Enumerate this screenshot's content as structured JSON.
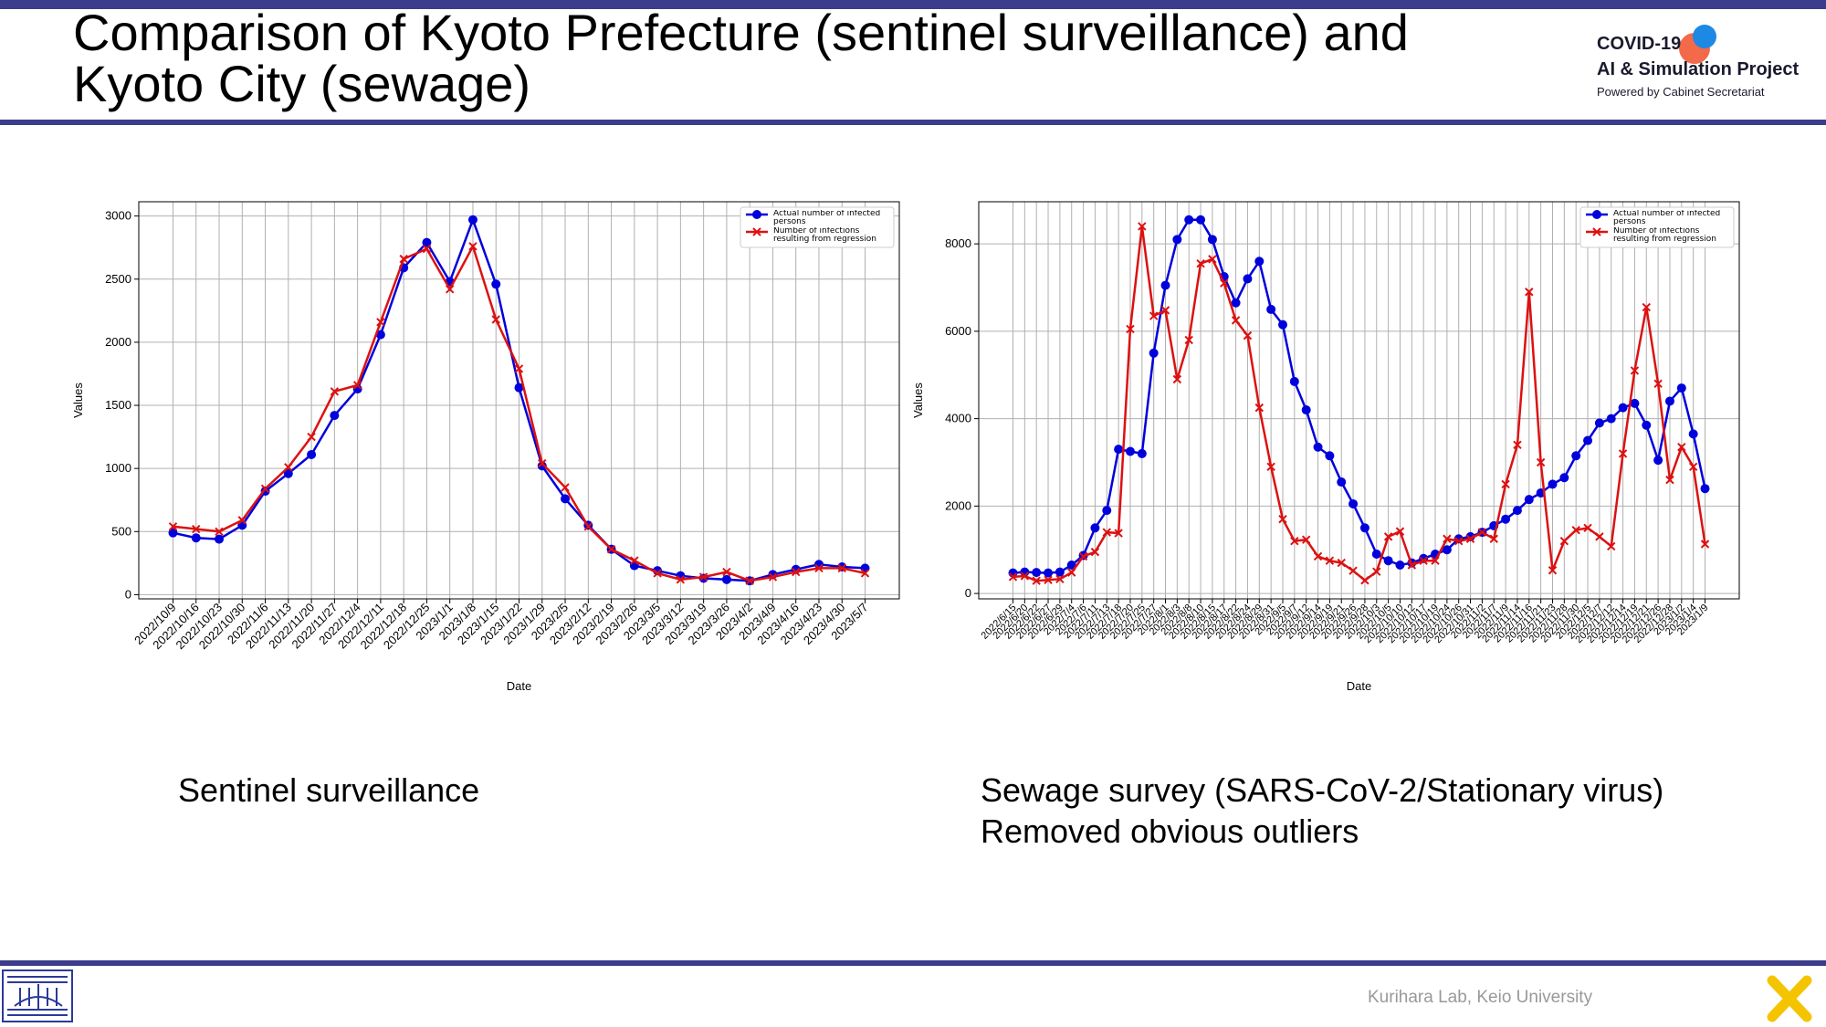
{
  "header": {
    "title": "Comparison of Kyoto Prefecture (sentinel surveillance) and Kyoto City (sewage)",
    "logo": {
      "line1": "COVID-19",
      "line2": "AI & Simulation Project",
      "line3": "Powered by Cabinet Secretariat"
    }
  },
  "chart_data": [
    {
      "type": "line",
      "xlabel": "Date",
      "ylabel": "Values",
      "categories": [
        "2022/10/9",
        "2022/10/16",
        "2022/10/23",
        "2022/10/30",
        "2022/11/6",
        "2022/11/13",
        "2022/11/20",
        "2022/11/27",
        "2022/12/4",
        "2022/12/11",
        "2022/12/18",
        "2022/12/25",
        "2023/1/1",
        "2023/1/8",
        "2023/1/15",
        "2023/1/22",
        "2023/1/29",
        "2023/2/5",
        "2023/2/12",
        "2023/2/19",
        "2023/2/26",
        "2023/3/5",
        "2023/3/12",
        "2023/3/19",
        "2023/3/26",
        "2023/4/2",
        "2023/4/9",
        "2023/4/16",
        "2023/4/23",
        "2023/4/30",
        "2023/5/7"
      ],
      "series": [
        {
          "name": "Actual number of infected persons",
          "color": "#0000dd",
          "marker": "circle",
          "values": [
            490,
            450,
            440,
            550,
            820,
            960,
            1110,
            1420,
            1630,
            2060,
            2590,
            2790,
            2480,
            2970,
            2460,
            1640,
            1020,
            760,
            550,
            360,
            230,
            190,
            150,
            130,
            120,
            110,
            160,
            200,
            240,
            220,
            210
          ]
        },
        {
          "name": "Number of infections resulting from regression",
          "color": "#dd1111",
          "marker": "x",
          "values": [
            540,
            520,
            500,
            590,
            840,
            1010,
            1250,
            1610,
            1660,
            2160,
            2660,
            2740,
            2420,
            2760,
            2180,
            1790,
            1040,
            850,
            540,
            360,
            270,
            170,
            120,
            140,
            180,
            110,
            140,
            180,
            210,
            210,
            170
          ]
        }
      ],
      "ylim": [
        -33,
        3113
      ],
      "yticks": [
        0,
        500,
        1000,
        1500,
        2000,
        2500,
        3000
      ],
      "grid": true,
      "legend": "upper right"
    },
    {
      "type": "line",
      "xlabel": "Date",
      "ylabel": "Values",
      "categories": [
        "2022/6/15",
        "2022/6/20",
        "2022/6/22",
        "2022/6/27",
        "2022/6/29",
        "2022/7/4",
        "2022/7/6",
        "2022/7/11",
        "2022/7/13",
        "2022/7/18",
        "2022/7/20",
        "2022/7/25",
        "2022/7/27",
        "2022/8/1",
        "2022/8/3",
        "2022/8/8",
        "2022/8/10",
        "2022/8/15",
        "2022/8/17",
        "2022/8/22",
        "2022/8/24",
        "2022/8/29",
        "2022/8/31",
        "2022/9/5",
        "2022/9/7",
        "2022/9/12",
        "2022/9/14",
        "2022/9/19",
        "2022/9/21",
        "2022/9/26",
        "2022/9/28",
        "2022/10/3",
        "2022/10/5",
        "2022/10/10",
        "2022/10/12",
        "2022/10/17",
        "2022/10/19",
        "2022/10/24",
        "2022/10/26",
        "2022/10/31",
        "2022/11/2",
        "2022/11/7",
        "2022/11/9",
        "2022/11/14",
        "2022/11/16",
        "2022/11/21",
        "2022/11/23",
        "2022/11/28",
        "2022/11/30",
        "2022/12/5",
        "2022/12/7",
        "2022/12/12",
        "2022/12/14",
        "2022/12/19",
        "2022/12/21",
        "2022/12/26",
        "2022/12/28",
        "2023/1/2",
        "2023/1/4",
        "2023/1/9"
      ],
      "series": [
        {
          "name": "Actual number of infected persons",
          "color": "#0000dd",
          "marker": "circle",
          "values": [
            470,
            490,
            480,
            470,
            490,
            650,
            870,
            1500,
            1900,
            3300,
            3250,
            3200,
            5500,
            7050,
            8100,
            8550,
            8550,
            8100,
            7250,
            6650,
            7200,
            7600,
            6500,
            6150,
            4850,
            4200,
            3350,
            3150,
            2550,
            2050,
            1500,
            900,
            750,
            650,
            700,
            800,
            900,
            1000,
            1250,
            1300,
            1400,
            1550,
            1700,
            1900,
            2150,
            2300,
            2500,
            2650,
            3150,
            3500,
            3900,
            4000,
            4250,
            4350,
            3850,
            3050,
            4400,
            4700,
            3650,
            2400
          ]
        },
        {
          "name": "Number of infections resulting from regression",
          "color": "#dd1111",
          "marker": "x",
          "values": [
            380,
            400,
            290,
            310,
            330,
            480,
            850,
            950,
            1400,
            1380,
            6050,
            8400,
            6350,
            6480,
            4900,
            5800,
            7550,
            7650,
            7100,
            6250,
            5900,
            4250,
            2900,
            1700,
            1200,
            1230,
            850,
            750,
            700,
            520,
            300,
            500,
            1300,
            1420,
            650,
            750,
            750,
            1250,
            1200,
            1250,
            1400,
            1250,
            2500,
            3400,
            6900,
            3000,
            530,
            1200,
            1450,
            1500,
            1300,
            1080,
            3200,
            5100,
            6550,
            4800,
            2600,
            3350,
            2900,
            1130
          ]
        }
      ],
      "ylim": [
        -123,
        8963
      ],
      "yticks": [
        0,
        2000,
        4000,
        6000,
        8000
      ],
      "grid": true,
      "legend": "upper right"
    }
  ],
  "captions": {
    "left": "Sentinel surveillance",
    "right_line1": "Sewage survey (SARS-CoV-2/Stationary virus)",
    "right_line2": "Removed obvious outliers"
  },
  "footer": "Kurihara Lab, Keio University"
}
